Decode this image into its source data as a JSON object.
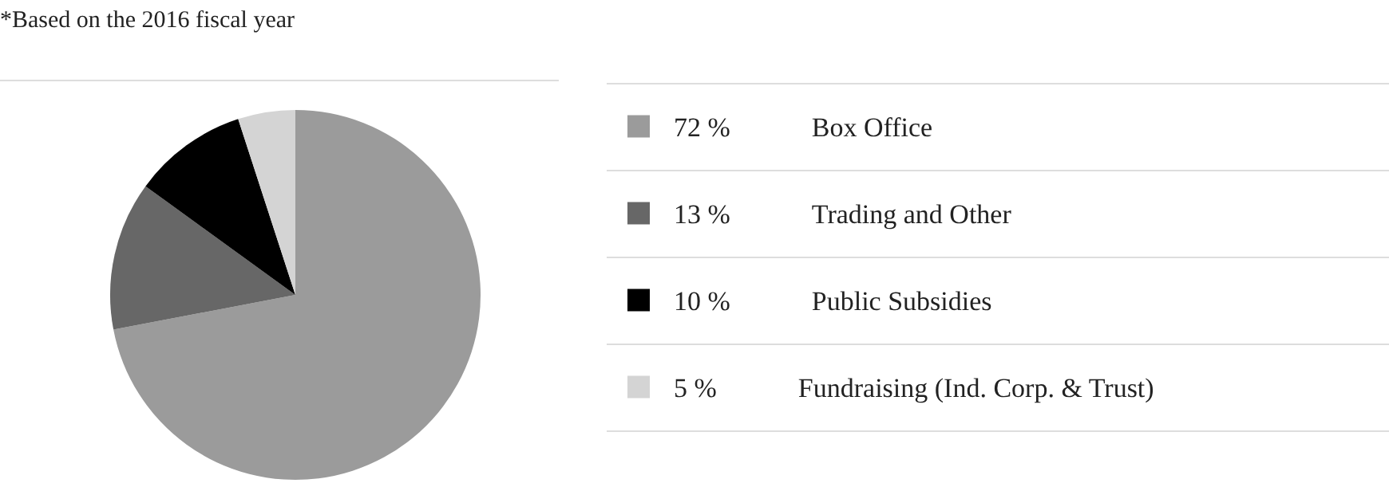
{
  "chart_data": {
    "type": "pie",
    "annotations": [
      "*Based on the 2016 fiscal year"
    ],
    "categories": [
      "Box Office",
      "Trading and Other",
      "Public Subsidies",
      "Fundraising (Ind. Corp. & Trust)"
    ],
    "values": [
      72,
      13,
      10,
      5
    ],
    "value_labels": [
      "72 %",
      "13 %",
      "10 %",
      "5 %"
    ],
    "colors": [
      "#9b9b9b",
      "#676767",
      "#000000",
      "#d4d4d4"
    ],
    "legend": "right"
  }
}
